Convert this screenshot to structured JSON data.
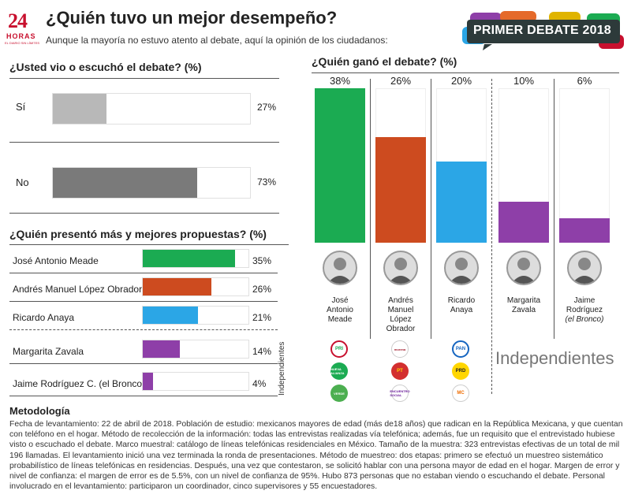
{
  "brand": {
    "logo_number": "24",
    "logo_word": "HORAS",
    "logo_tagline": "EL DIARIO SIN LÍMITES"
  },
  "header": {
    "title": "¿Quién tuvo un mejor desempeño?",
    "subtitle": "Aunque la mayoría no estuvo atento al debate, aquí la opinión de los ciudadanos:",
    "badge": "PRIMER DEBATE 2018"
  },
  "colors": {
    "green": "#1bab52",
    "orange": "#cd4b1f",
    "blue": "#2ba6e6",
    "purple": "#8e3fa8",
    "gray_light": "#b8b8b8",
    "gray_dark": "#7a7a7a"
  },
  "chart_data": [
    {
      "type": "bar",
      "title": "¿Usted vio o escuchó el debate? (%)",
      "categories": [
        "Sí",
        "No"
      ],
      "values": [
        27,
        73
      ],
      "labels": [
        "27%",
        "73%"
      ],
      "ylim": [
        0,
        100
      ]
    },
    {
      "type": "bar",
      "title": "¿Quién presentó más y mejores propuestas? (%)",
      "categories": [
        "José Antonio Meade",
        "Andrés Manuel López Obrador",
        "Ricardo Anaya",
        "Margarita Zavala",
        "Jaime Rodríguez C. (el Bronco)"
      ],
      "values": [
        35,
        26,
        21,
        14,
        4
      ],
      "labels": [
        "35%",
        "26%",
        "21%",
        "14%",
        "4%"
      ],
      "group_label": "Independientes",
      "ylim": [
        0,
        100
      ]
    },
    {
      "type": "bar",
      "title": "¿Quién ganó el debate? (%)",
      "categories": [
        "José Antonio Meade",
        "Andrés Manuel López Obrador",
        "Ricardo Anaya",
        "Margarita Zavala",
        "Jaime Rodríguez (el Bronco)"
      ],
      "values": [
        38,
        26,
        20,
        10,
        6
      ],
      "labels": [
        "38%",
        "26%",
        "20%",
        "10%",
        "6%"
      ],
      "ylim": [
        0,
        38
      ],
      "group_label": "Independientes"
    }
  ],
  "candidates": [
    {
      "name_lines": [
        "José",
        "Antonio",
        "Meade"
      ],
      "parties": [
        "PRI",
        "NUEVA ALIANZA",
        "VERDE"
      ]
    },
    {
      "name_lines": [
        "Andrés",
        "Manuel",
        "López",
        "Obrador"
      ],
      "parties": [
        "morena",
        "PT",
        "ENCUENTRO SOCIAL"
      ]
    },
    {
      "name_lines": [
        "Ricardo",
        "Anaya"
      ],
      "parties": [
        "PAN",
        "PRD",
        "MC"
      ]
    },
    {
      "name_lines": [
        "Margarita",
        "Zavala"
      ],
      "parties": []
    },
    {
      "name_lines": [
        "Jaime",
        "Rodríguez",
        "(el Bronco)"
      ],
      "parties": []
    }
  ],
  "methodology": {
    "title": "Metodología",
    "text": "Fecha de levantamiento: 22 de abril de 2018. Población de estudio: mexicanos mayores de edad (más de18 años) que radican en la República Mexicana, y que cuentan con teléfono en el hogar. Método de recolección de la información: todas las entrevistas realizadas vía telefónica; además, fue un requisito que el entrevistado hubiese visto o escuchado el debate. Marco muestral: catálogo de líneas telefónicas residenciales en México. Tamaño de la muestra: 323 entrevistas efectivas de un total de mil 196 llamadas. El levantamiento inició una vez terminada la ronda de presentaciones. Método de muestreo: dos etapas: primero se efectuó un muestreo sistemático probabilístico de líneas telefónicas en residencias. Después, una vez que contestaron, se solicitó hablar con una persona mayor de edad en el hogar. Margen de error y nivel de confianza: el margen de error es de 5.5%, con un nivel de confianza de 95%. Hubo 873 personas que no estaban viendo o escuchando el debate. Personal involucrado en el levantamiento: participaron un coordinador, cinco supervisores y 55 encuestadores."
  }
}
